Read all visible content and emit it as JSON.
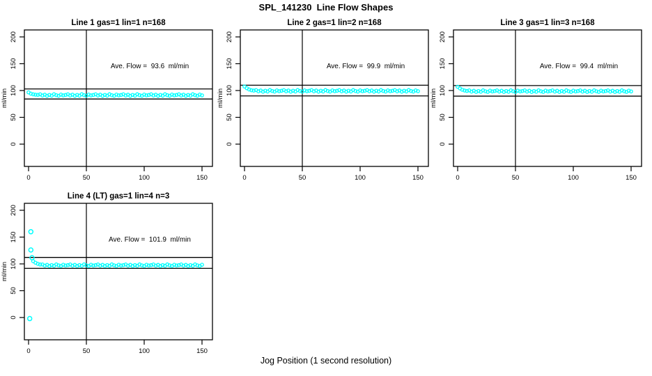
{
  "title": "SPL_141230  Line Flow Shapes",
  "xlabel": "Jog Position (1 second resolution)",
  "colors": {
    "points": "#00ffff",
    "axis": "#000000",
    "background": "#ffffff"
  },
  "chart_data": [
    {
      "type": "scatter",
      "title": "Line 1 gas=1 lin=1 n=168",
      "annotation": "Ave. Flow =  93.6  ml/min",
      "ave_flow": 93.6,
      "ylabel": "ml/min",
      "ylim": [
        0,
        200
      ],
      "yticks": [
        0,
        50,
        100,
        150,
        200
      ],
      "xticks": [
        0,
        50,
        100,
        150
      ],
      "xlim": [
        0,
        155
      ],
      "vline_x": 50,
      "ref_lines": [
        102.9,
        84.2
      ],
      "x_start": 0,
      "x_step": 2,
      "y_values": [
        96.5,
        94.2,
        92.9,
        92.2,
        91.9,
        92.9,
        90.7,
        92.2,
        90.1,
        91.8,
        90.4,
        93.0,
        91.3,
        90.2,
        92.4,
        91.0,
        91.7,
        92.9,
        90.7,
        92.2,
        90.1,
        91.8,
        90.4,
        93.0,
        91.3,
        90.2,
        92.4,
        91.0,
        91.7,
        92.9,
        90.7,
        92.2,
        90.1,
        91.8,
        90.4,
        93.0,
        91.3,
        90.2,
        92.4,
        91.0,
        91.7,
        92.9,
        90.7,
        92.2,
        90.1,
        91.8,
        90.4,
        93.0,
        91.3,
        90.2,
        92.4,
        91.0,
        91.7,
        92.9,
        90.7,
        92.2,
        90.1,
        91.8,
        90.4,
        93.0,
        91.3,
        90.2,
        92.4,
        91.0,
        91.7,
        92.9,
        90.7,
        92.2,
        90.1,
        91.8,
        90.4,
        93.0,
        91.3,
        90.2,
        92.4,
        91.0
      ],
      "extra_points": []
    },
    {
      "type": "scatter",
      "title": "Line 2 gas=1 lin=2 n=168",
      "annotation": "Ave. Flow =  99.9  ml/min",
      "ave_flow": 99.9,
      "ylabel": "ml/min",
      "ylim": [
        0,
        200
      ],
      "yticks": [
        0,
        50,
        100,
        150,
        200
      ],
      "xticks": [
        0,
        50,
        100,
        150
      ],
      "xlim": [
        0,
        155
      ],
      "vline_x": 50,
      "ref_lines": [
        109.9,
        89.9
      ],
      "x_start": 0,
      "x_step": 2,
      "y_values": [
        107.5,
        104.3,
        101.9,
        100.5,
        99.8,
        100.7,
        98.5,
        100.0,
        97.9,
        99.6,
        98.2,
        100.8,
        99.1,
        98.0,
        100.2,
        98.8,
        99.5,
        100.7,
        98.5,
        100.0,
        97.9,
        99.6,
        98.2,
        100.8,
        99.1,
        98.0,
        100.2,
        98.8,
        99.5,
        100.7,
        98.5,
        100.0,
        97.9,
        99.6,
        98.2,
        100.8,
        99.1,
        98.0,
        100.2,
        98.8,
        99.5,
        100.7,
        98.5,
        100.0,
        97.9,
        99.6,
        98.2,
        100.8,
        99.1,
        98.0,
        100.2,
        98.8,
        99.5,
        100.7,
        98.5,
        100.0,
        97.9,
        99.6,
        98.2,
        100.8,
        99.1,
        98.0,
        100.2,
        98.8,
        99.5,
        100.7,
        98.5,
        100.0,
        97.9,
        99.6,
        98.2,
        100.8,
        99.1,
        98.0,
        100.2,
        98.8
      ],
      "extra_points": []
    },
    {
      "type": "scatter",
      "title": "Line 3 gas=1 lin=3 n=168",
      "annotation": "Ave. Flow =  99.4  ml/min",
      "ave_flow": 99.4,
      "ylabel": "ml/min",
      "ylim": [
        0,
        200
      ],
      "yticks": [
        0,
        50,
        100,
        150,
        200
      ],
      "xticks": [
        0,
        50,
        100,
        150
      ],
      "xlim": [
        0,
        155
      ],
      "vline_x": 50,
      "ref_lines": [
        109.3,
        89.5
      ],
      "x_start": 0,
      "x_step": 2,
      "y_values": [
        107.0,
        103.9,
        101.4,
        100.0,
        99.2,
        100.2,
        98.0,
        99.5,
        97.4,
        99.1,
        97.7,
        100.3,
        98.6,
        97.5,
        99.7,
        98.3,
        99.0,
        100.2,
        98.0,
        99.5,
        97.4,
        99.1,
        97.7,
        100.3,
        98.6,
        97.5,
        99.7,
        98.3,
        99.0,
        100.2,
        98.0,
        99.5,
        97.4,
        99.1,
        97.7,
        100.3,
        98.6,
        97.5,
        99.7,
        98.3,
        99.0,
        100.2,
        98.0,
        99.5,
        97.4,
        99.1,
        97.7,
        100.3,
        98.6,
        97.5,
        99.7,
        98.3,
        99.0,
        100.2,
        98.0,
        99.5,
        97.4,
        99.1,
        97.7,
        100.3,
        98.6,
        97.5,
        99.7,
        98.3,
        99.0,
        100.2,
        98.0,
        99.5,
        97.4,
        99.1,
        97.7,
        100.3,
        98.6,
        97.5,
        99.7,
        98.3
      ],
      "extra_points": []
    },
    {
      "type": "scatter",
      "title": "Line 4 (LT) gas=1 lin=4 n=3",
      "annotation": "Ave. Flow =  101.9  ml/min",
      "ave_flow": 101.9,
      "ylabel": "ml/min",
      "ylim": [
        0,
        200
      ],
      "yticks": [
        0,
        50,
        100,
        150,
        200
      ],
      "xticks": [
        0,
        50,
        100,
        150
      ],
      "xlim": [
        0,
        155
      ],
      "vline_x": 50,
      "ref_lines": [
        112.1,
        91.7
      ],
      "x_start": 4,
      "x_step": 2,
      "y_values": [
        105.0,
        102.2,
        100.2,
        98.9,
        98.9,
        96.7,
        98.2,
        96.1,
        97.8,
        96.4,
        99.0,
        97.3,
        96.2,
        98.4,
        97.0,
        97.7,
        98.9,
        96.7,
        98.2,
        96.1,
        97.8,
        96.4,
        99.0,
        97.3,
        96.2,
        98.4,
        97.0,
        97.7,
        98.9,
        96.7,
        98.2,
        96.1,
        97.8,
        96.4,
        99.0,
        97.3,
        96.2,
        98.4,
        97.0,
        97.7,
        98.9,
        96.7,
        98.2,
        96.1,
        97.8,
        96.4,
        99.0,
        97.3,
        96.2,
        98.4,
        97.0,
        97.7,
        98.9,
        96.7,
        98.2,
        96.1,
        97.8,
        96.4,
        99.0,
        97.3,
        96.2,
        98.4,
        97.0,
        97.7,
        98.9,
        96.7,
        98.2,
        96.1,
        97.8,
        96.4,
        99.0,
        97.3,
        96.2,
        98.4
      ],
      "extra_points": [
        [
          1,
          -2
        ],
        [
          2,
          160
        ],
        [
          2,
          126
        ],
        [
          3,
          111.5
        ]
      ]
    }
  ]
}
